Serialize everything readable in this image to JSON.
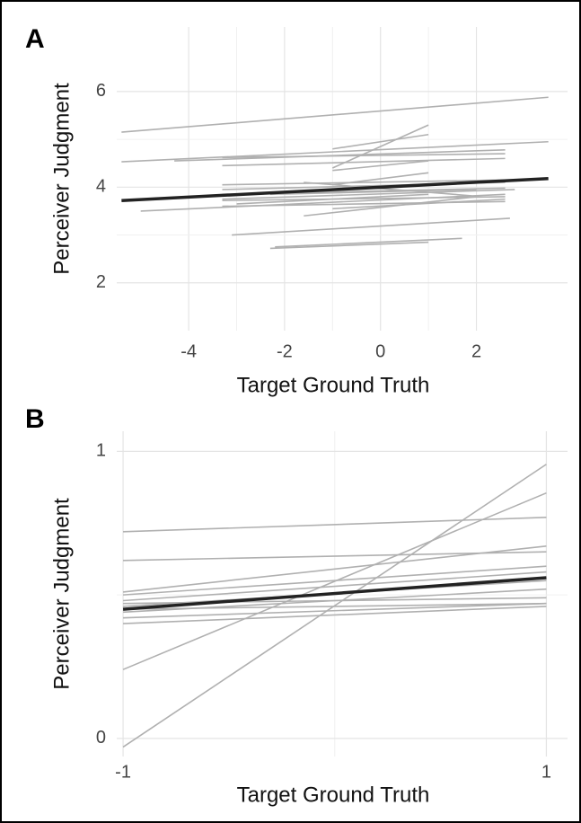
{
  "chart_data": [
    {
      "type": "line",
      "panel": "A",
      "xlabel": "Target Ground Truth",
      "ylabel": "Perceiver Judgment",
      "xlim": [
        -5.5,
        3.9
      ],
      "ylim": [
        1.0,
        7.35
      ],
      "xticks": [
        -4,
        -2,
        0,
        2
      ],
      "yticks": [
        2,
        4,
        6
      ],
      "grid": true,
      "color": "#b0b0b0",
      "series": [
        {
          "x": [
            -5.4,
            3.5
          ],
          "values": [
            5.15,
            5.88
          ]
        },
        {
          "x": [
            -5.4,
            3.5
          ],
          "values": [
            4.53,
            4.95
          ]
        },
        {
          "x": [
            -4.3,
            2.6
          ],
          "values": [
            4.55,
            4.78
          ]
        },
        {
          "x": [
            -3.3,
            2.6
          ],
          "values": [
            4.62,
            4.7
          ]
        },
        {
          "x": [
            -3.3,
            2.6
          ],
          "values": [
            4.45,
            4.6
          ]
        },
        {
          "x": [
            -1.0,
            1.0
          ],
          "values": [
            4.4,
            5.3
          ]
        },
        {
          "x": [
            -1.0,
            1.0
          ],
          "values": [
            4.8,
            5.1
          ]
        },
        {
          "x": [
            -1.0,
            1.0
          ],
          "values": [
            4.35,
            4.55
          ]
        },
        {
          "x": [
            -3.3,
            2.6
          ],
          "values": [
            4.05,
            4.15
          ]
        },
        {
          "x": [
            -3.3,
            2.6
          ],
          "values": [
            3.95,
            4.1
          ]
        },
        {
          "x": [
            -3.3,
            2.6
          ],
          "values": [
            3.85,
            3.98
          ]
        },
        {
          "x": [
            -5.0,
            2.6
          ],
          "values": [
            3.5,
            3.85
          ]
        },
        {
          "x": [
            -3.3,
            2.6
          ],
          "values": [
            3.6,
            3.7
          ]
        },
        {
          "x": [
            -3.3,
            2.8
          ],
          "values": [
            3.75,
            3.95
          ]
        },
        {
          "x": [
            -1.6,
            2.0
          ],
          "values": [
            3.4,
            3.8
          ]
        },
        {
          "x": [
            -1.6,
            1.9
          ],
          "values": [
            4.1,
            3.82
          ]
        },
        {
          "x": [
            -3.0,
            1.0
          ],
          "values": [
            3.65,
            3.85
          ]
        },
        {
          "x": [
            -3.1,
            2.7
          ],
          "values": [
            3.0,
            3.35
          ]
        },
        {
          "x": [
            -2.3,
            1.0
          ],
          "values": [
            2.72,
            2.85
          ]
        },
        {
          "x": [
            -2.2,
            1.7
          ],
          "values": [
            2.75,
            2.93
          ]
        },
        {
          "x": [
            -2.3,
            2.0
          ],
          "values": [
            3.85,
            3.95
          ]
        },
        {
          "x": [
            -1.0,
            2.6
          ],
          "values": [
            3.55,
            3.75
          ]
        },
        {
          "x": [
            -3.3,
            2.6
          ],
          "values": [
            3.72,
            3.8
          ]
        },
        {
          "x": [
            -1.0,
            1.0
          ],
          "values": [
            4.05,
            4.3
          ]
        }
      ],
      "mean_line": {
        "x": [
          -5.4,
          3.5
        ],
        "values": [
          3.72,
          4.18
        ],
        "color": "#222222"
      }
    },
    {
      "type": "line",
      "panel": "B",
      "xlabel": "Target Ground Truth",
      "ylabel": "Perceiver Judgment",
      "xlim": [
        -1.03,
        1.1
      ],
      "ylim": [
        -0.063,
        1.07
      ],
      "xticks": [
        -1,
        1
      ],
      "yticks": [
        0,
        1
      ],
      "grid": true,
      "color": "#b0b0b0",
      "series": [
        {
          "x": [
            -1,
            1
          ],
          "values": [
            0.72,
            0.77
          ]
        },
        {
          "x": [
            -1,
            1
          ],
          "values": [
            0.62,
            0.65
          ]
        },
        {
          "x": [
            -1,
            1
          ],
          "values": [
            0.51,
            0.67
          ]
        },
        {
          "x": [
            -1,
            1
          ],
          "values": [
            0.5,
            0.6
          ]
        },
        {
          "x": [
            -1,
            1
          ],
          "values": [
            0.48,
            0.58
          ]
        },
        {
          "x": [
            -1,
            1
          ],
          "values": [
            0.46,
            0.55
          ]
        },
        {
          "x": [
            -1,
            1
          ],
          "values": [
            0.44,
            0.52
          ]
        },
        {
          "x": [
            -1,
            1
          ],
          "values": [
            0.42,
            0.47
          ]
        },
        {
          "x": [
            -1,
            1
          ],
          "values": [
            0.4,
            0.46
          ]
        },
        {
          "x": [
            -1,
            1
          ],
          "values": [
            0.47,
            0.49
          ]
        },
        {
          "x": [
            -1,
            1
          ],
          "values": [
            0.45,
            0.47
          ]
        },
        {
          "x": [
            -1,
            1
          ],
          "values": [
            0.24,
            0.855
          ]
        },
        {
          "x": [
            -1,
            1
          ],
          "values": [
            -0.03,
            0.955
          ]
        }
      ],
      "mean_line": {
        "x": [
          -1,
          1
        ],
        "values": [
          0.45,
          0.56
        ],
        "color": "#222222"
      }
    }
  ]
}
